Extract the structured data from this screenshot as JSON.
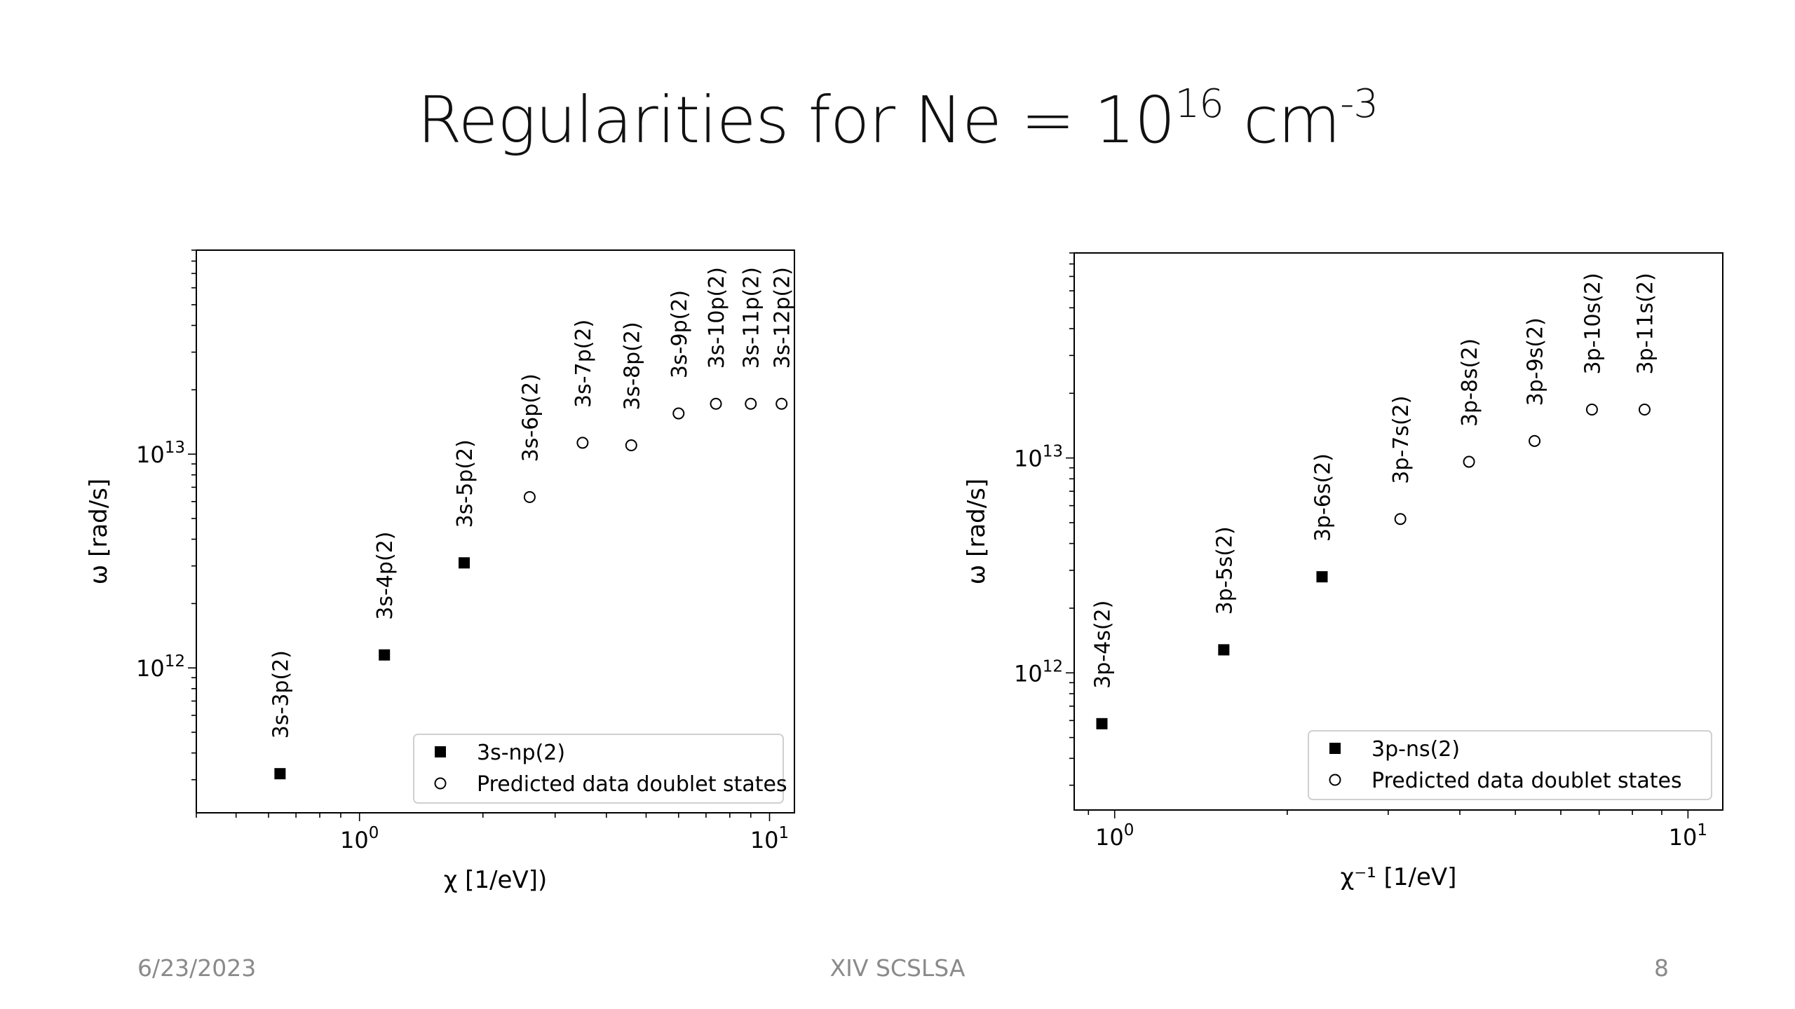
{
  "slide": {
    "title_main": "Regularities for Ne = 10",
    "title_exp1": "16",
    "title_unit": " cm",
    "title_exp2": "-3",
    "footer_date": "6/23/2023",
    "footer_center": "XIV SCSLSA",
    "footer_page": "8"
  },
  "chart_data": [
    {
      "type": "scatter",
      "xscale": "log",
      "yscale": "log",
      "xlim": [
        0.4,
        11.5
      ],
      "ylim": [
        210000000000.0,
        90000000000000.0
      ],
      "xlabel": "χ [1/eV])",
      "ylabel": "ω [rad/s]",
      "x_ticks": [
        {
          "value": 1,
          "base": "10",
          "exp": "0"
        },
        {
          "value": 10,
          "base": "10",
          "exp": "1"
        }
      ],
      "y_ticks": [
        {
          "value": 1000000000000.0,
          "base": "10",
          "exp": "12"
        },
        {
          "value": 10000000000000.0,
          "base": "10",
          "exp": "13"
        }
      ],
      "legend_position": "lower-right",
      "series": [
        {
          "name": "3s-np(2)",
          "marker": "filled-square",
          "points": [
            {
              "x": 0.64,
              "y": 320000000000.0,
              "label": "3s-3p(2)"
            },
            {
              "x": 1.15,
              "y": 1150000000000.0,
              "label": "3s-4p(2)"
            },
            {
              "x": 1.8,
              "y": 3100000000000.0,
              "label": "3s-5p(2)"
            }
          ]
        },
        {
          "name": "Predicted data doublet states",
          "marker": "open-circle",
          "points": [
            {
              "x": 2.6,
              "y": 6300000000000.0,
              "label": "3s-6p(2)"
            },
            {
              "x": 3.5,
              "y": 11300000000000.0,
              "label": "3s-7p(2)"
            },
            {
              "x": 4.6,
              "y": 11000000000000.0,
              "label": "3s-8p(2)"
            },
            {
              "x": 6.0,
              "y": 15500000000000.0,
              "label": "3s-9p(2)"
            },
            {
              "x": 7.4,
              "y": 17200000000000.0,
              "label": "3s-10p(2)"
            },
            {
              "x": 9.0,
              "y": 17200000000000.0,
              "label": "3s-11p(2)"
            },
            {
              "x": 10.7,
              "y": 17200000000000.0,
              "label": "3s-12p(2)"
            }
          ]
        }
      ]
    },
    {
      "type": "scatter",
      "xscale": "log",
      "yscale": "log",
      "xlim": [
        0.85,
        11.5
      ],
      "ylim": [
        230000000000.0,
        90000000000000.0
      ],
      "xlabel": "χ⁻¹ [1/eV]",
      "ylabel": "ω [rad/s]",
      "x_ticks": [
        {
          "value": 1,
          "base": "10",
          "exp": "0"
        },
        {
          "value": 10,
          "base": "10",
          "exp": "1"
        }
      ],
      "y_ticks": [
        {
          "value": 1000000000000.0,
          "base": "10",
          "exp": "12"
        },
        {
          "value": 10000000000000.0,
          "base": "10",
          "exp": "13"
        }
      ],
      "legend_position": "lower-right",
      "series": [
        {
          "name": "3p-ns(2)",
          "marker": "filled-square",
          "points": [
            {
              "x": 0.95,
              "y": 580000000000.0,
              "label": "3p-4s(2)"
            },
            {
              "x": 1.55,
              "y": 1280000000000.0,
              "label": "3p-5s(2)"
            },
            {
              "x": 2.3,
              "y": 2800000000000.0,
              "label": "3p-6s(2)"
            }
          ]
        },
        {
          "name": "Predicted data doublet states",
          "marker": "open-circle",
          "points": [
            {
              "x": 3.15,
              "y": 5200000000000.0,
              "label": "3p-7s(2)"
            },
            {
              "x": 4.15,
              "y": 9600000000000.0,
              "label": "3p-8s(2)"
            },
            {
              "x": 5.4,
              "y": 12000000000000.0,
              "label": "3p-9s(2)"
            },
            {
              "x": 6.8,
              "y": 16800000000000.0,
              "label": "3p-10s(2)"
            },
            {
              "x": 8.4,
              "y": 16800000000000.0,
              "label": "3p-11s(2)"
            }
          ]
        }
      ]
    }
  ]
}
